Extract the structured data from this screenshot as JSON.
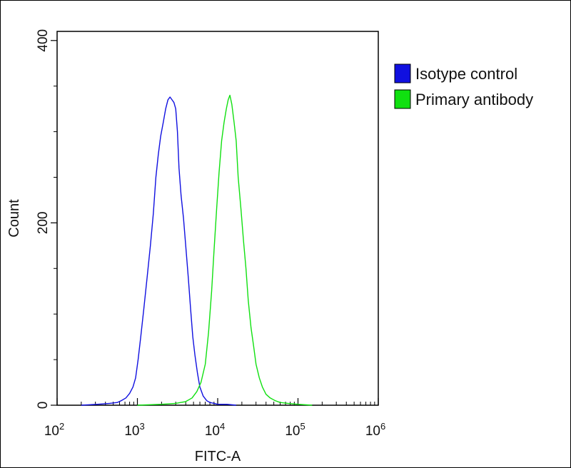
{
  "chart_data": {
    "type": "line",
    "title": "",
    "xlabel": "FITC-A",
    "ylabel": "Count",
    "x_scale": "log",
    "xlim": [
      100,
      1000000
    ],
    "ylim": [
      0,
      410
    ],
    "x_ticks": [
      {
        "value": 100,
        "base": "10",
        "exp": "2"
      },
      {
        "value": 1000,
        "base": "10",
        "exp": "3"
      },
      {
        "value": 10000,
        "base": "10",
        "exp": "4"
      },
      {
        "value": 100000,
        "base": "10",
        "exp": "5"
      },
      {
        "value": 1000000,
        "base": "10",
        "exp": "6"
      }
    ],
    "y_ticks": [
      {
        "value": 0,
        "label": "0"
      },
      {
        "value": 200,
        "label": "200"
      },
      {
        "value": 400,
        "label": "400"
      }
    ],
    "grid": false,
    "legend": "right",
    "series": [
      {
        "name": "Isotype control",
        "color": "#1010e0",
        "x": [
          200,
          320,
          450,
          560,
          630,
          720,
          800,
          880,
          950,
          1020,
          1100,
          1200,
          1320,
          1450,
          1580,
          1700,
          1820,
          1950,
          2100,
          2250,
          2400,
          2550,
          2700,
          2850,
          3000,
          3150,
          3300,
          3500,
          3750,
          4000,
          4300,
          4600,
          4900,
          5200,
          5600,
          6000,
          6600,
          7300,
          8000,
          9000,
          10000,
          13000,
          17000
        ],
        "y": [
          0,
          1,
          2,
          3,
          5,
          8,
          13,
          20,
          30,
          50,
          75,
          105,
          140,
          175,
          210,
          250,
          275,
          295,
          310,
          325,
          335,
          338,
          335,
          332,
          325,
          300,
          260,
          230,
          205,
          175,
          140,
          105,
          75,
          55,
          35,
          20,
          10,
          5,
          3,
          2,
          1,
          1,
          0
        ]
      },
      {
        "name": "Primary antibody",
        "color": "#10e010",
        "x": [
          1000,
          2000,
          3000,
          4000,
          4800,
          5500,
          6200,
          7000,
          7700,
          8400,
          9000,
          9700,
          10400,
          11200,
          12000,
          12800,
          13500,
          14200,
          15000,
          16000,
          17000,
          18000,
          19500,
          21000,
          22500,
          24000,
          26000,
          28000,
          30000,
          33000,
          36000,
          40000,
          45000,
          52000,
          60000,
          75000,
          100000,
          150000
        ],
        "y": [
          0,
          1,
          2,
          4,
          8,
          15,
          25,
          45,
          80,
          125,
          170,
          215,
          255,
          290,
          310,
          325,
          335,
          340,
          330,
          310,
          290,
          250,
          215,
          180,
          150,
          115,
          85,
          65,
          45,
          30,
          20,
          12,
          8,
          5,
          3,
          2,
          1,
          0
        ]
      }
    ]
  }
}
